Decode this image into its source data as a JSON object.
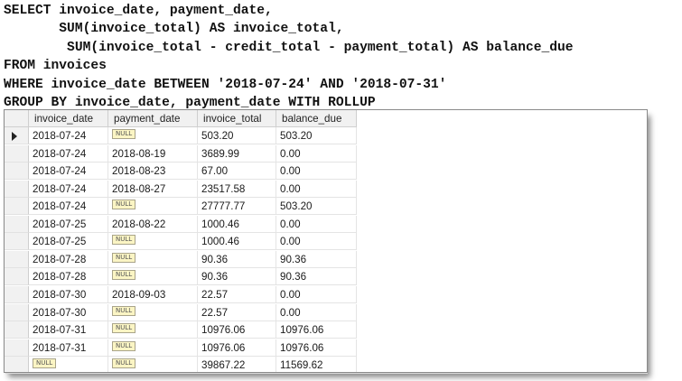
{
  "sql": {
    "lines": [
      "SELECT invoice_date, payment_date,",
      "       SUM(invoice_total) AS invoice_total,",
      "        SUM(invoice_total - credit_total - payment_total) AS balance_due",
      "FROM invoices",
      "WHERE invoice_date BETWEEN '2018-07-24' AND '2018-07-31'",
      "GROUP BY invoice_date, payment_date WITH ROLLUP"
    ]
  },
  "results": {
    "columns": [
      "invoice_date",
      "payment_date",
      "invoice_total",
      "balance_due"
    ],
    "null_label": "NULL",
    "current_row_marker": "triangle-right-icon",
    "rows": [
      [
        "2018-07-24",
        null,
        "503.20",
        "503.20"
      ],
      [
        "2018-07-24",
        "2018-08-19",
        "3689.99",
        "0.00"
      ],
      [
        "2018-07-24",
        "2018-08-23",
        "67.00",
        "0.00"
      ],
      [
        "2018-07-24",
        "2018-08-27",
        "23517.58",
        "0.00"
      ],
      [
        "2018-07-24",
        null,
        "27777.77",
        "503.20"
      ],
      [
        "2018-07-25",
        "2018-08-22",
        "1000.46",
        "0.00"
      ],
      [
        "2018-07-25",
        null,
        "1000.46",
        "0.00"
      ],
      [
        "2018-07-28",
        null,
        "90.36",
        "90.36"
      ],
      [
        "2018-07-28",
        null,
        "90.36",
        "90.36"
      ],
      [
        "2018-07-30",
        "2018-09-03",
        "22.57",
        "0.00"
      ],
      [
        "2018-07-30",
        null,
        "22.57",
        "0.00"
      ],
      [
        "2018-07-31",
        null,
        "10976.06",
        "10976.06"
      ],
      [
        "2018-07-31",
        null,
        "10976.06",
        "10976.06"
      ],
      [
        null,
        null,
        "39867.22",
        "11569.62"
      ]
    ]
  }
}
